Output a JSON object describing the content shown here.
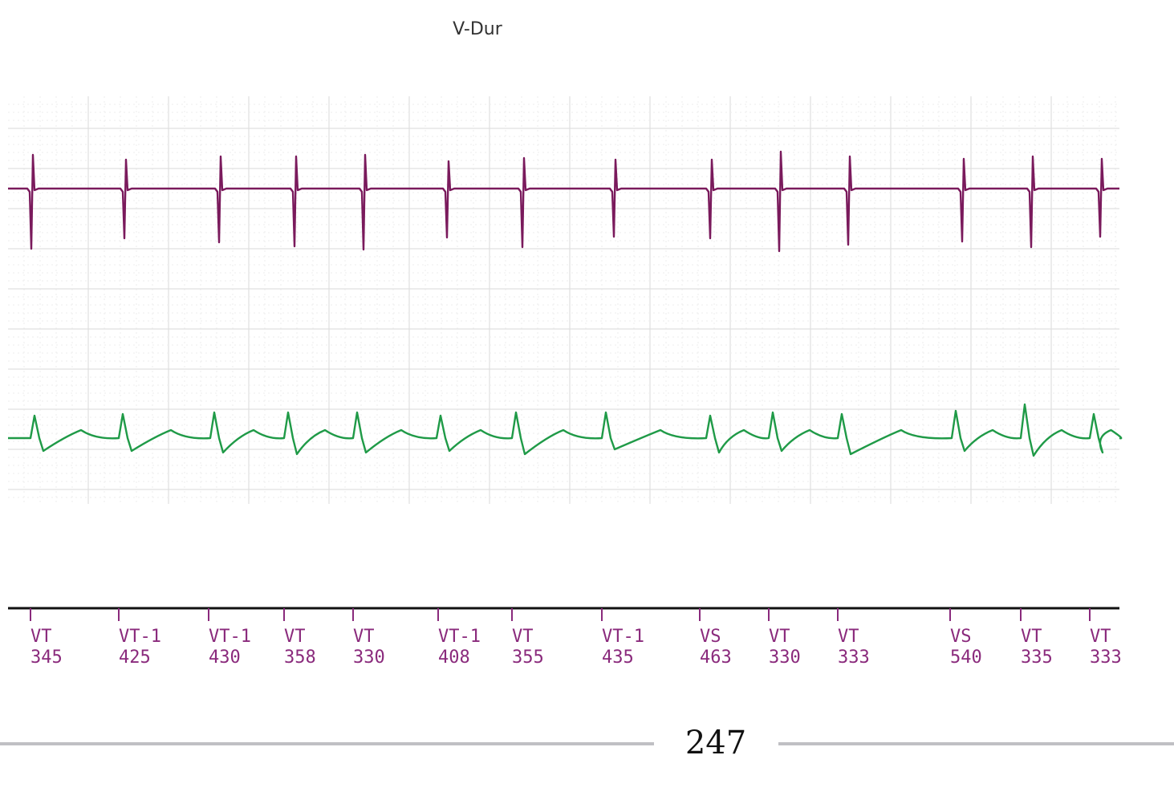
{
  "chart_data": {
    "type": "line",
    "title": "V-Dur",
    "grid": true,
    "series": [
      {
        "name": "",
        "color": "#7a1a5c",
        "beats": [
          {
            "t": 0.3,
            "up": 42,
            "down": 75
          },
          {
            "t": 1.46,
            "up": 36,
            "down": 62
          },
          {
            "t": 2.64,
            "up": 40,
            "down": 67
          },
          {
            "t": 3.58,
            "up": 40,
            "down": 72
          },
          {
            "t": 4.44,
            "up": 42,
            "down": 76
          },
          {
            "t": 5.48,
            "up": 34,
            "down": 61
          },
          {
            "t": 6.42,
            "up": 38,
            "down": 73
          },
          {
            "t": 7.56,
            "up": 36,
            "down": 60
          },
          {
            "t": 8.76,
            "up": 36,
            "down": 62
          },
          {
            "t": 9.62,
            "up": 46,
            "down": 78
          },
          {
            "t": 10.48,
            "up": 40,
            "down": 70
          },
          {
            "t": 11.9,
            "up": 37,
            "down": 66
          },
          {
            "t": 12.76,
            "up": 40,
            "down": 73
          },
          {
            "t": 13.62,
            "up": 37,
            "down": 60
          }
        ]
      },
      {
        "name": "",
        "color": "#1f9a47",
        "beats": [
          {
            "t": 0.36,
            "up": 28,
            "down": 16
          },
          {
            "t": 1.46,
            "up": 30,
            "down": 16
          },
          {
            "t": 2.6,
            "up": 32,
            "down": 18
          },
          {
            "t": 3.52,
            "up": 32,
            "down": 20
          },
          {
            "t": 4.38,
            "up": 32,
            "down": 18
          },
          {
            "t": 5.42,
            "up": 28,
            "down": 16
          },
          {
            "t": 6.36,
            "up": 32,
            "down": 20
          },
          {
            "t": 7.48,
            "up": 32,
            "down": 14
          },
          {
            "t": 8.78,
            "up": 28,
            "down": 18
          },
          {
            "t": 9.56,
            "up": 32,
            "down": 16
          },
          {
            "t": 10.42,
            "up": 30,
            "down": 20
          },
          {
            "t": 11.84,
            "up": 34,
            "down": 16
          },
          {
            "t": 12.7,
            "up": 42,
            "down": 22
          },
          {
            "t": 13.56,
            "up": 30,
            "down": 18
          }
        ]
      }
    ],
    "markers": [
      {
        "t": 0.28,
        "label": "VT",
        "value": "345"
      },
      {
        "t": 1.38,
        "label": "VT-1",
        "value": "425"
      },
      {
        "t": 2.5,
        "label": "VT-1",
        "value": "430"
      },
      {
        "t": 3.44,
        "label": "VT",
        "value": "358"
      },
      {
        "t": 4.3,
        "label": "VT",
        "value": "330"
      },
      {
        "t": 5.36,
        "label": "VT-1",
        "value": "408"
      },
      {
        "t": 6.28,
        "label": "VT",
        "value": "355"
      },
      {
        "t": 7.4,
        "label": "VT-1",
        "value": "435"
      },
      {
        "t": 8.62,
        "label": "VS",
        "value": "463"
      },
      {
        "t": 9.48,
        "label": "VT",
        "value": "330"
      },
      {
        "t": 10.34,
        "label": "VT",
        "value": "333"
      },
      {
        "t": 11.74,
        "label": "VS",
        "value": "540"
      },
      {
        "t": 12.62,
        "label": "VT",
        "value": "335"
      },
      {
        "t": 13.48,
        "label": "VT",
        "value": "333"
      }
    ],
    "marker_color": "#8a2a7c"
  },
  "page": {
    "number": "247"
  }
}
